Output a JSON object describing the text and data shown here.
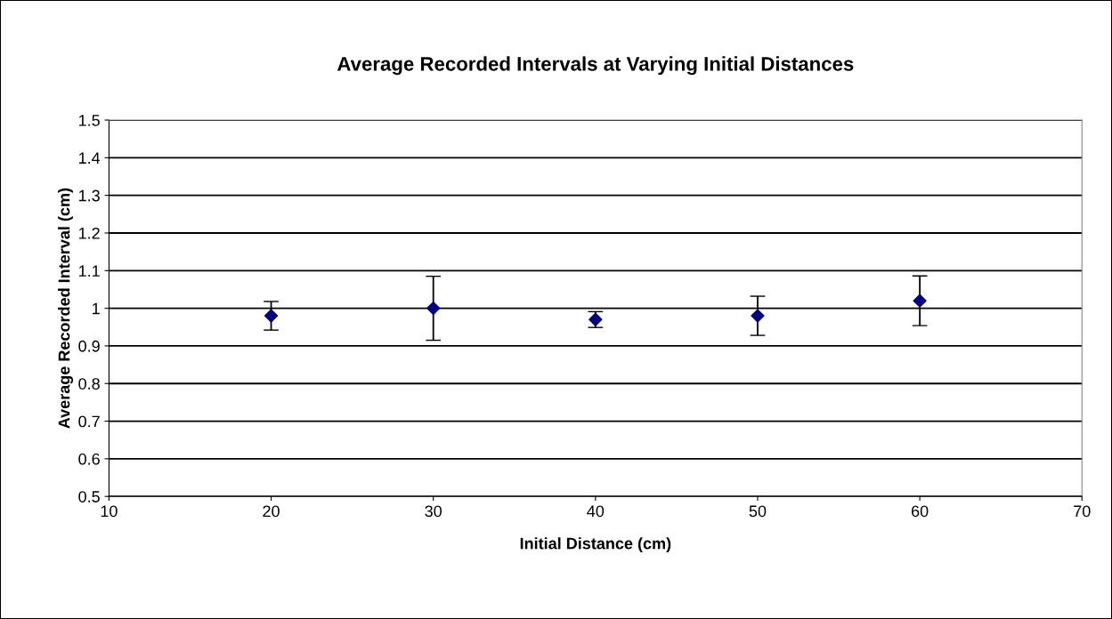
{
  "chart_data": {
    "type": "scatter",
    "title": "Average Recorded Intervals at Varying Initial Distances",
    "xlabel": "Initial Distance (cm)",
    "ylabel": "Average Recorded Interval (cm)",
    "x": [
      20,
      30,
      40,
      50,
      60
    ],
    "series": [
      {
        "color": "#000080",
        "values": [
          0.98,
          1.0,
          0.97,
          0.98,
          1.02
        ],
        "errors": [
          0.038,
          0.085,
          0.021,
          0.052,
          0.066
        ]
      }
    ],
    "xlim": [
      10,
      70
    ],
    "xticks": [
      10,
      20,
      30,
      40,
      50,
      60,
      70
    ],
    "ylim": [
      0.5,
      1.5
    ],
    "yticks": [
      0.5,
      0.6,
      0.7,
      0.8,
      0.9,
      1,
      1.1,
      1.2,
      1.3,
      1.4,
      1.5
    ],
    "grid": "y",
    "marker": "diamond"
  }
}
